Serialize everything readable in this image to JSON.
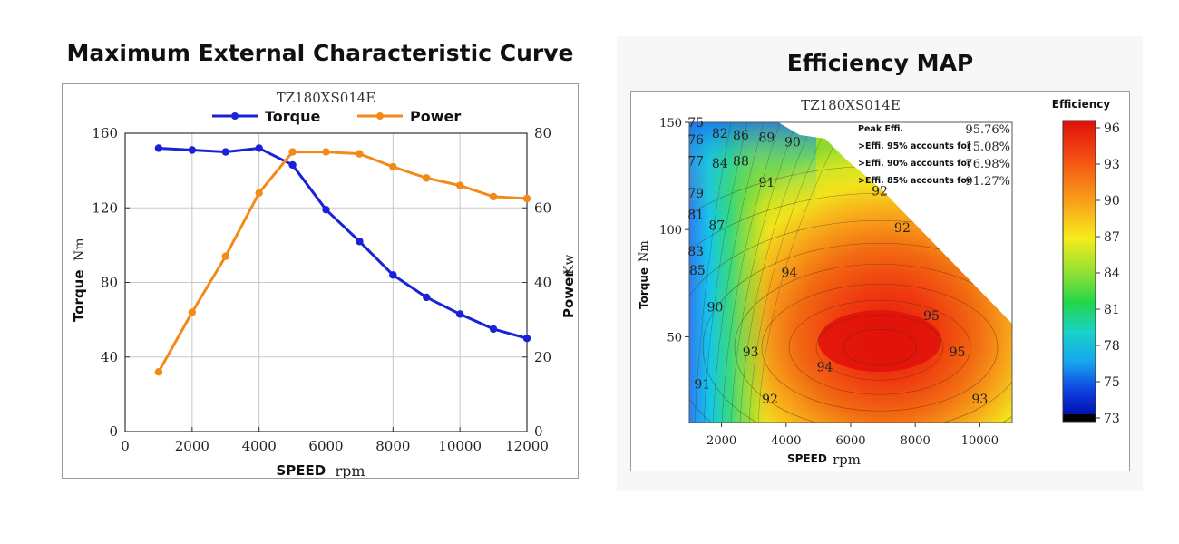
{
  "left_title": "Maximum External Characteristic Curve",
  "right_title": "Efficiency MAP",
  "chart_data": [
    {
      "type": "line",
      "title": "TZ180XS014E",
      "xlabel": "SPEED",
      "xunit": "rpm",
      "ylabel_left": "Torque",
      "yunit_left": "Nm",
      "ylabel_right": "Power",
      "yunit_right": "Kw",
      "xlim": [
        0,
        12000
      ],
      "ylim_left": [
        0,
        160
      ],
      "ylim_right": [
        0,
        80
      ],
      "xticks": [
        0,
        2000,
        4000,
        6000,
        8000,
        10000,
        12000
      ],
      "yticks_left": [
        0,
        40,
        80,
        120,
        160
      ],
      "yticks_right": [
        0,
        20,
        40,
        60,
        80
      ],
      "legend_position": "top-center",
      "grid": true,
      "series": [
        {
          "name": "Torque",
          "axis": "left",
          "color": "#1a22d6",
          "x": [
            1000,
            2000,
            3000,
            4000,
            5000,
            6000,
            7000,
            8000,
            9000,
            10000,
            11000,
            12000
          ],
          "y": [
            152,
            151,
            150,
            152,
            143,
            119,
            102,
            84,
            72,
            63,
            55,
            50
          ]
        },
        {
          "name": "Power",
          "axis": "right",
          "color": "#f28a1a",
          "x": [
            1000,
            2000,
            3000,
            4000,
            5000,
            6000,
            7000,
            8000,
            9000,
            10000,
            11000,
            12000
          ],
          "y": [
            16,
            32,
            47,
            64,
            75,
            75,
            74.5,
            71,
            68,
            66,
            63,
            62.5
          ]
        }
      ]
    },
    {
      "type": "heatmap",
      "title": "TZ180XS014E",
      "xlabel": "SPEED",
      "xunit": "rpm",
      "ylabel": "Torque",
      "yunit": "Nm",
      "xlim": [
        1000,
        11000
      ],
      "ylim": [
        10,
        150
      ],
      "xticks": [
        2000,
        4000,
        6000,
        8000,
        10000
      ],
      "yticks": [
        50,
        100,
        150
      ],
      "colorbar_title": "Efficiency",
      "colorbar_ticks": [
        96,
        93,
        90,
        87,
        84,
        81,
        78,
        75,
        73
      ],
      "contour_labels": [
        {
          "label": "75",
          "x": 1200,
          "y": 150
        },
        {
          "label": "76",
          "x": 1200,
          "y": 142
        },
        {
          "label": "77",
          "x": 1200,
          "y": 132
        },
        {
          "label": "79",
          "x": 1200,
          "y": 117
        },
        {
          "label": "81",
          "x": 1200,
          "y": 107
        },
        {
          "label": "83",
          "x": 1200,
          "y": 90
        },
        {
          "label": "85",
          "x": 1250,
          "y": 81
        },
        {
          "label": "82",
          "x": 1950,
          "y": 145
        },
        {
          "label": "86",
          "x": 2600,
          "y": 144
        },
        {
          "label": "89",
          "x": 3400,
          "y": 143
        },
        {
          "label": "90",
          "x": 4200,
          "y": 141
        },
        {
          "label": "84",
          "x": 1950,
          "y": 131
        },
        {
          "label": "88",
          "x": 2600,
          "y": 132
        },
        {
          "label": "91",
          "x": 3400,
          "y": 122
        },
        {
          "label": "87",
          "x": 1850,
          "y": 102
        },
        {
          "label": "92",
          "x": 6900,
          "y": 118
        },
        {
          "label": "92",
          "x": 7600,
          "y": 101
        },
        {
          "label": "90",
          "x": 1800,
          "y": 64
        },
        {
          "label": "94",
          "x": 4100,
          "y": 80
        },
        {
          "label": "93",
          "x": 2900,
          "y": 43
        },
        {
          "label": "95",
          "x": 8500,
          "y": 60
        },
        {
          "label": "95",
          "x": 9300,
          "y": 43
        },
        {
          "label": "94",
          "x": 5200,
          "y": 36
        },
        {
          "label": "91",
          "x": 1400,
          "y": 28
        },
        {
          "label": "92",
          "x": 3500,
          "y": 21
        },
        {
          "label": "93",
          "x": 10000,
          "y": 21
        }
      ],
      "stats": [
        {
          "label": "Peak Effi.",
          "value": "95.76%"
        },
        {
          "label": ">Effi. 95% accounts for",
          "value": "15.08%"
        },
        {
          "label": ">Effi. 90% accounts for",
          "value": "76.98%"
        },
        {
          "label": ">Effi. 85% accounts for",
          "value": "91.27%"
        }
      ]
    }
  ]
}
